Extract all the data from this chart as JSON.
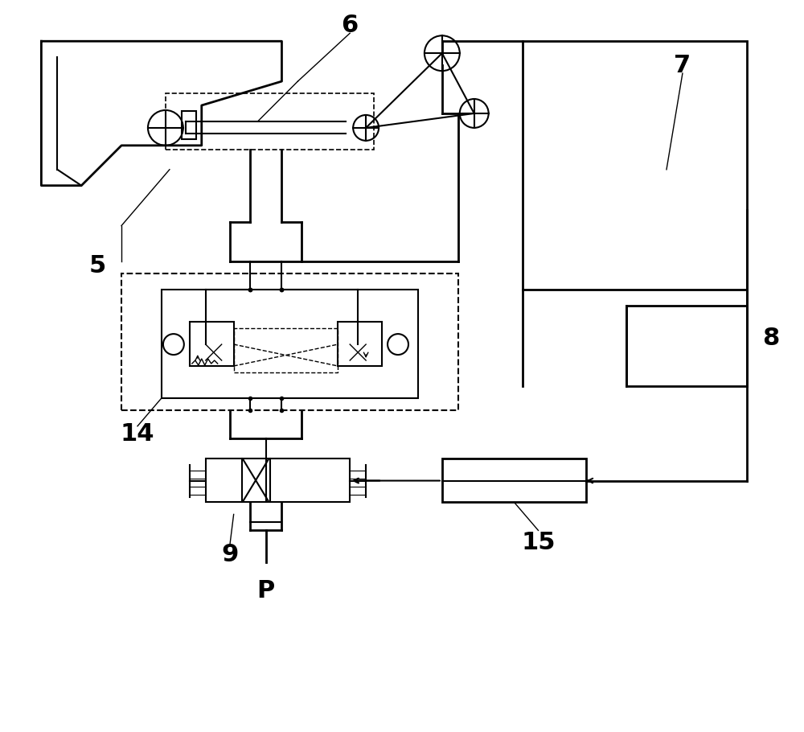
{
  "bg_color": "#ffffff",
  "line_color": "#000000",
  "label_5": "5",
  "label_6": "6",
  "label_7": "7",
  "label_8": "8",
  "label_9": "9",
  "label_14": "14",
  "label_15": "15",
  "label_P": "P",
  "font_size_large": 22,
  "font_size_medium": 16
}
